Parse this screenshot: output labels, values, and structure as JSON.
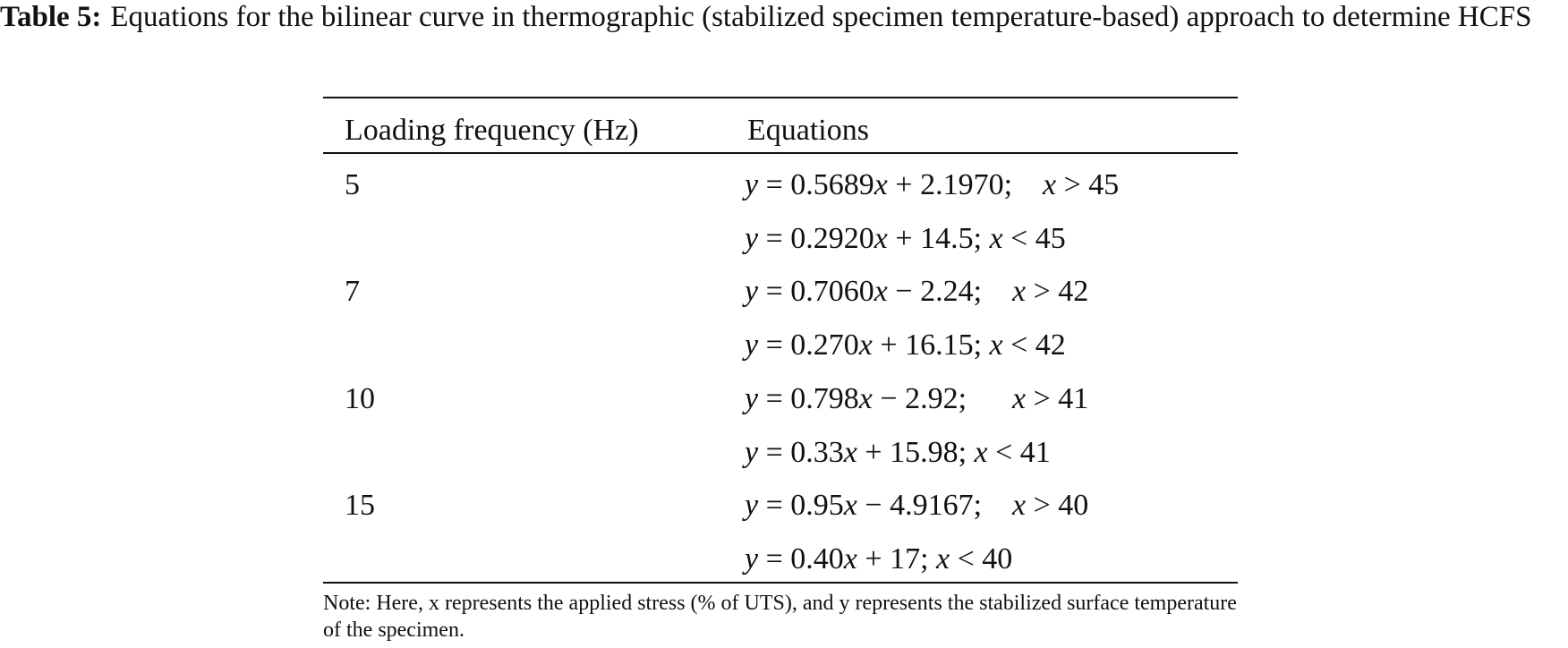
{
  "caption": {
    "label": "Table 5:",
    "text": "Equations for the bilinear curve in thermographic (stabilized specimen temperature-based) approach to determine HCFS"
  },
  "table": {
    "header": [
      "Loading frequency (Hz)",
      "Equations"
    ],
    "groups": [
      {
        "frequency": "5",
        "equations": [
          "y = 0.5689x + 2.1970;    x > 45",
          "y = 0.2920x + 14.5; x < 45"
        ]
      },
      {
        "frequency": "7",
        "equations": [
          "y = 0.7060x − 2.24;    x > 42",
          "y = 0.270x + 16.15; x < 42"
        ]
      },
      {
        "frequency": "10",
        "equations": [
          "y = 0.798x − 2.92;      x > 41",
          "y = 0.33x + 15.98; x < 41"
        ]
      },
      {
        "frequency": "15",
        "equations": [
          "y = 0.95x − 4.9167;    x > 40",
          "y = 0.40x + 17; x < 40"
        ]
      }
    ],
    "note": "Note: Here, x represents the applied stress (% of UTS), and y represents the stabilized surface temperature of the specimen."
  }
}
